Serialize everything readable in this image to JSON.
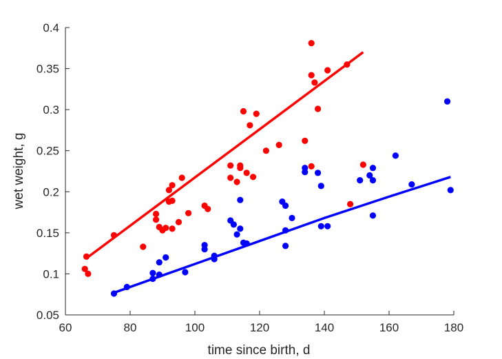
{
  "chart_data": {
    "type": "scatter",
    "xlabel": "time since birth, d",
    "ylabel": "wet weight, g",
    "xlim": [
      60,
      180
    ],
    "ylim": [
      0.05,
      0.4
    ],
    "xticks": [
      "60",
      "80",
      "100",
      "120",
      "140",
      "160",
      "180"
    ],
    "yticks": [
      "0.05",
      "0.1",
      "0.15",
      "0.2",
      "0.25",
      "0.3",
      "0.35",
      "0.4"
    ],
    "grid": false,
    "series": [
      {
        "color": "#ff0000",
        "points": [
          [
            66,
            0.106
          ],
          [
            66.5,
            0.121
          ],
          [
            67,
            0.1
          ],
          [
            75,
            0.147
          ],
          [
            84,
            0.133
          ],
          [
            88,
            0.166
          ],
          [
            88,
            0.173
          ],
          [
            89,
            0.157
          ],
          [
            90,
            0.153
          ],
          [
            91,
            0.156
          ],
          [
            92,
            0.202
          ],
          [
            92,
            0.188
          ],
          [
            93,
            0.208
          ],
          [
            93,
            0.189
          ],
          [
            93,
            0.155
          ],
          [
            95,
            0.163
          ],
          [
            96,
            0.217
          ],
          [
            98,
            0.174
          ],
          [
            103,
            0.183
          ],
          [
            104,
            0.179
          ],
          [
            111,
            0.232
          ],
          [
            111,
            0.217
          ],
          [
            113,
            0.212
          ],
          [
            114,
            0.232
          ],
          [
            114,
            0.229
          ],
          [
            115,
            0.298
          ],
          [
            116,
            0.223
          ],
          [
            117,
            0.281
          ],
          [
            118,
            0.218
          ],
          [
            119,
            0.295
          ],
          [
            122,
            0.25
          ],
          [
            126,
            0.257
          ],
          [
            134,
            0.262
          ],
          [
            136,
            0.381
          ],
          [
            136,
            0.342
          ],
          [
            136,
            0.231
          ],
          [
            137,
            0.333
          ],
          [
            138,
            0.301
          ],
          [
            141,
            0.348
          ],
          [
            147,
            0.355
          ],
          [
            148,
            0.185
          ],
          [
            152,
            0.233
          ]
        ],
        "fit": [
          [
            66.5,
            0.119
          ],
          [
            152,
            0.37
          ]
        ]
      },
      {
        "color": "#0000ff",
        "points": [
          [
            75,
            0.076
          ],
          [
            79,
            0.084
          ],
          [
            87,
            0.101
          ],
          [
            87,
            0.094
          ],
          [
            89,
            0.114
          ],
          [
            89,
            0.099
          ],
          [
            91,
            0.12
          ],
          [
            97,
            0.102
          ],
          [
            103,
            0.135
          ],
          [
            103,
            0.13
          ],
          [
            106,
            0.122
          ],
          [
            106,
            0.118
          ],
          [
            111,
            0.165
          ],
          [
            112,
            0.16
          ],
          [
            113,
            0.148
          ],
          [
            114,
            0.19
          ],
          [
            114,
            0.155
          ],
          [
            115,
            0.138
          ],
          [
            116,
            0.137
          ],
          [
            127,
            0.188
          ],
          [
            128,
            0.183
          ],
          [
            128,
            0.153
          ],
          [
            128,
            0.134
          ],
          [
            130,
            0.168
          ],
          [
            134,
            0.229
          ],
          [
            134,
            0.224
          ],
          [
            138,
            0.223
          ],
          [
            139,
            0.207
          ],
          [
            139,
            0.158
          ],
          [
            141,
            0.158
          ],
          [
            151,
            0.214
          ],
          [
            154,
            0.22
          ],
          [
            155,
            0.229
          ],
          [
            155,
            0.214
          ],
          [
            155,
            0.171
          ],
          [
            162,
            0.244
          ],
          [
            167,
            0.209
          ],
          [
            178,
            0.31
          ],
          [
            179,
            0.202
          ]
        ],
        "fit": [
          [
            75,
            0.077
          ],
          [
            100,
            0.112
          ],
          [
            120,
            0.14
          ],
          [
            140,
            0.168
          ],
          [
            160,
            0.194
          ],
          [
            179,
            0.218
          ]
        ]
      }
    ]
  }
}
